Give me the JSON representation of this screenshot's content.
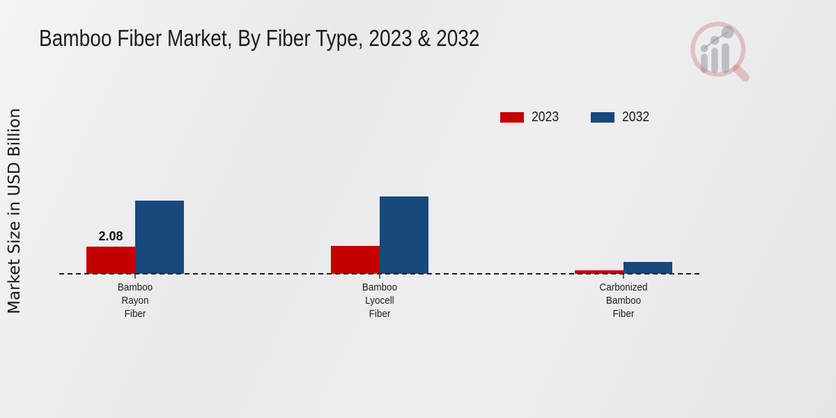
{
  "title": "Bamboo Fiber Market, By Fiber Type, 2023 & 2032",
  "y_axis_label": "Market Size in USD Billion",
  "legend": [
    {
      "label": "2023",
      "color": "#c40000"
    },
    {
      "label": "2032",
      "color": "#17497c"
    }
  ],
  "chart_data": {
    "type": "bar",
    "categories": [
      "Bamboo Rayon Fiber",
      "Bamboo Lyocell Fiber",
      "Carbonized Bamboo Fiber"
    ],
    "category_label_lines": [
      [
        "Bamboo",
        "Rayon",
        "Fiber"
      ],
      [
        "Bamboo",
        "Lyocell",
        "Fiber"
      ],
      [
        "Carbonized",
        "Bamboo",
        "Fiber"
      ]
    ],
    "series": [
      {
        "name": "2023",
        "color": "#c40000",
        "values": [
          2.08,
          2.15,
          0.25
        ]
      },
      {
        "name": "2032",
        "color": "#17497c",
        "values": [
          5.6,
          5.9,
          0.9
        ]
      }
    ],
    "annotations": [
      {
        "category_index": 0,
        "series_index": 0,
        "text": "2.08"
      }
    ],
    "title": "Bamboo Fiber Market, By Fiber Type, 2023 & 2032",
    "xlabel": "",
    "ylabel": "Market Size in USD Billion",
    "ylim": [
      0,
      8
    ],
    "grid": false,
    "legend_position": "top-right",
    "baseline_style": "dashed"
  },
  "branding": {
    "logo_icon": "magnifier-bar-chart-logo",
    "accent_red": "#c40000",
    "accent_blue": "#17497c",
    "footer_bar_color": "#b50000"
  }
}
